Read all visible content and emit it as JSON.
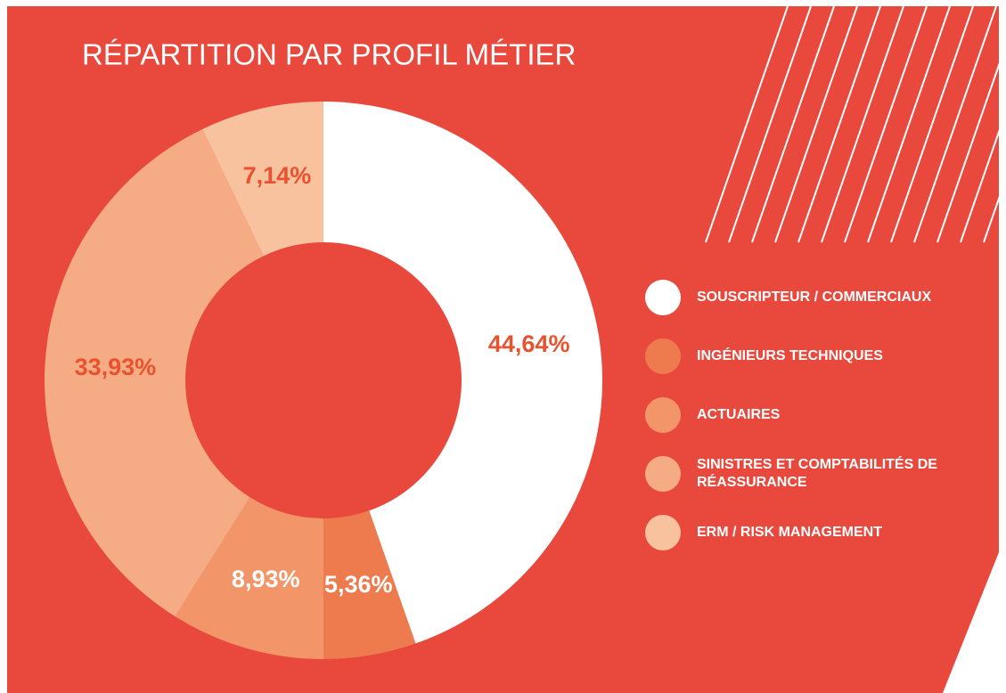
{
  "chart_data": {
    "type": "donut",
    "title": "RÉPARTITION PAR PROFIL MÉTIER",
    "categories": [
      "SOUSCRIPTEUR / COMMERCIAUX",
      "INGÉNIEURS TECHNIQUES",
      "ACTUAIRES",
      "SINISTRES ET COMPTABILITÉS DE RÉASSURANCE",
      "ERM / RISK MANAGEMENT"
    ],
    "values": [
      44.64,
      5.36,
      8.93,
      33.93,
      7.14
    ],
    "value_labels": [
      "44,64%",
      "5,36%",
      "8,93%",
      "33,93%",
      "7,14%"
    ],
    "colors": [
      "#ffffff",
      "#ee7b4e",
      "#f29669",
      "#f5ac84",
      "#f8c29e"
    ],
    "label_colors": [
      "#e8522f",
      "#ffffff",
      "#ffffff",
      "#e8522f",
      "#e8522f"
    ],
    "background": "#e8493c"
  }
}
